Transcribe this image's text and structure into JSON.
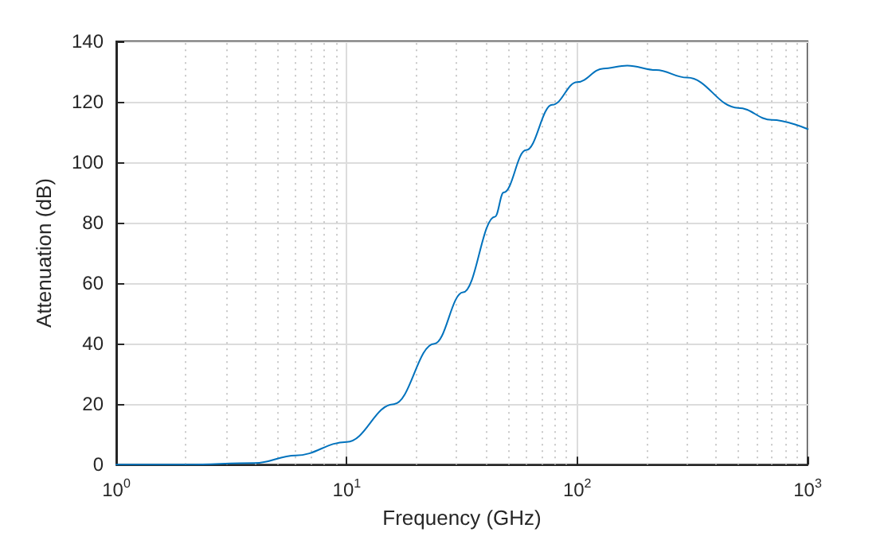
{
  "chart_data": {
    "type": "line",
    "xlabel": "Frequency (GHz)",
    "ylabel": "Attenuation (dB)",
    "x": [
      1,
      2,
      4,
      6,
      10,
      16,
      24,
      32,
      44,
      48,
      60,
      78,
      100,
      130,
      165,
      220,
      300,
      500,
      700,
      1000
    ],
    "series": [
      {
        "color": "#0072bd",
        "values": [
          0,
          0,
          0.5,
          3,
          7.5,
          20,
          40,
          57,
          82,
          90,
          104,
          119,
          126.5,
          131,
          132,
          130.5,
          128,
          118,
          114,
          111
        ]
      }
    ],
    "log": "x",
    "xlim": [
      1,
      1000
    ],
    "ylim": [
      0,
      140
    ],
    "xticks": [
      {
        "value": 1,
        "label": "10$^{0}$"
      },
      {
        "value": 10,
        "label": "10$^{1}$"
      },
      {
        "value": 100,
        "label": "10$^{2}$"
      },
      {
        "value": 1000,
        "label": "10$^{3}$"
      }
    ],
    "yticks": [
      0,
      20,
      40,
      60,
      80,
      100,
      120,
      140
    ],
    "grid": true,
    "marker": "none",
    "line_style": "solid"
  }
}
